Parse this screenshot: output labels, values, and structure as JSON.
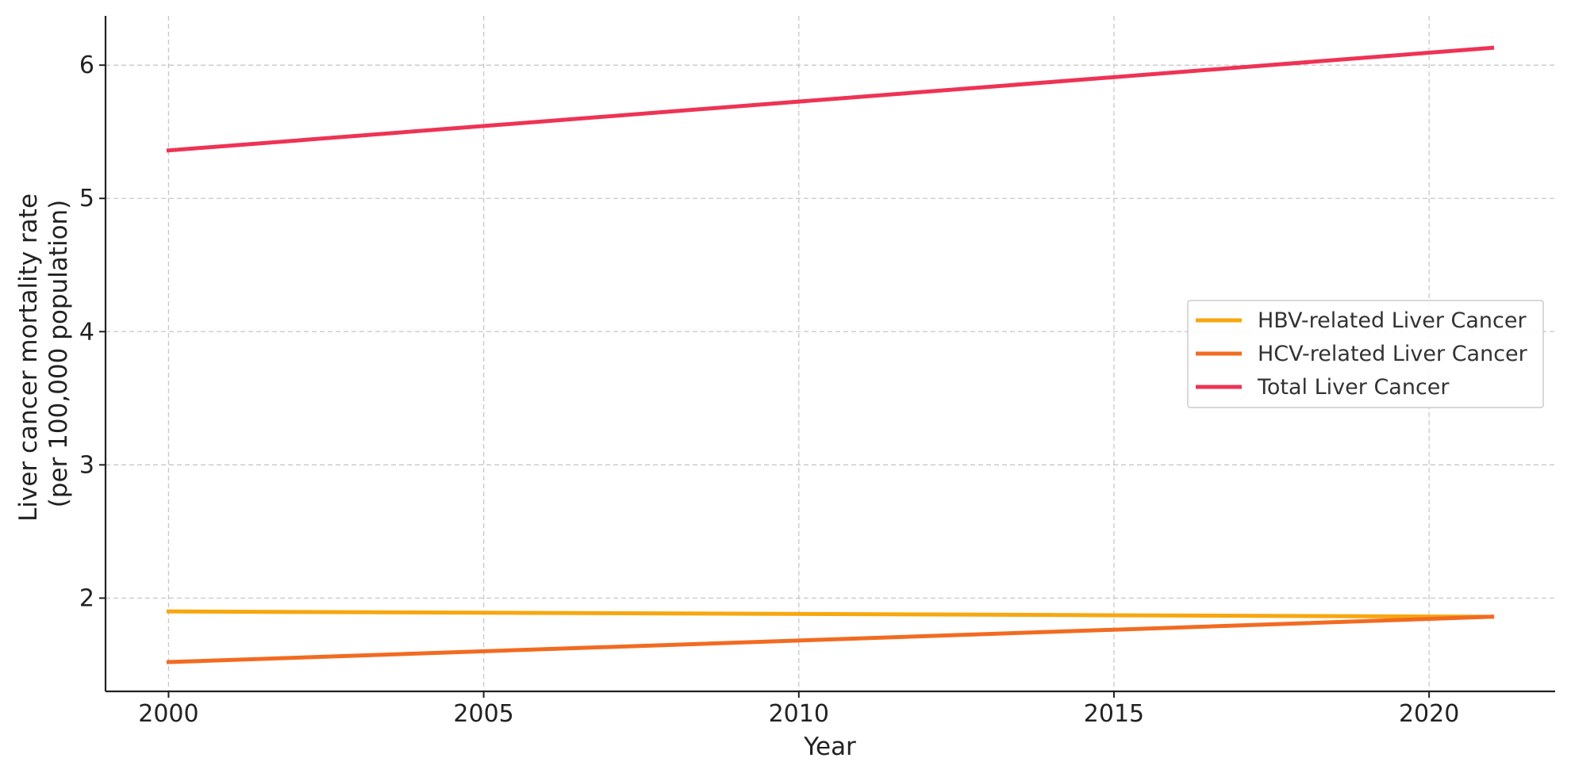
{
  "chart_data": {
    "type": "line",
    "title": "",
    "xlabel": "Year",
    "ylabel_lines": [
      "Liver cancer mortality rate",
      "(per 100,000 population)"
    ],
    "x": [
      2000,
      2021
    ],
    "xlim": [
      1999,
      2022
    ],
    "ylim": [
      1.3,
      6.37
    ],
    "xticks": [
      2000,
      2005,
      2010,
      2015,
      2020
    ],
    "yticks": [
      2,
      3,
      4,
      5,
      6
    ],
    "grid": true,
    "legend_position": "center-right",
    "series": [
      {
        "name": "HBV-related Liver Cancer",
        "color": "#F7A70F",
        "values": [
          1.9,
          1.86
        ]
      },
      {
        "name": "HCV-related Liver Cancer",
        "color": "#F26B21",
        "values": [
          1.52,
          1.86
        ]
      },
      {
        "name": "Total Liver Cancer",
        "color": "#EE3355",
        "values": [
          5.36,
          6.13
        ]
      }
    ]
  }
}
